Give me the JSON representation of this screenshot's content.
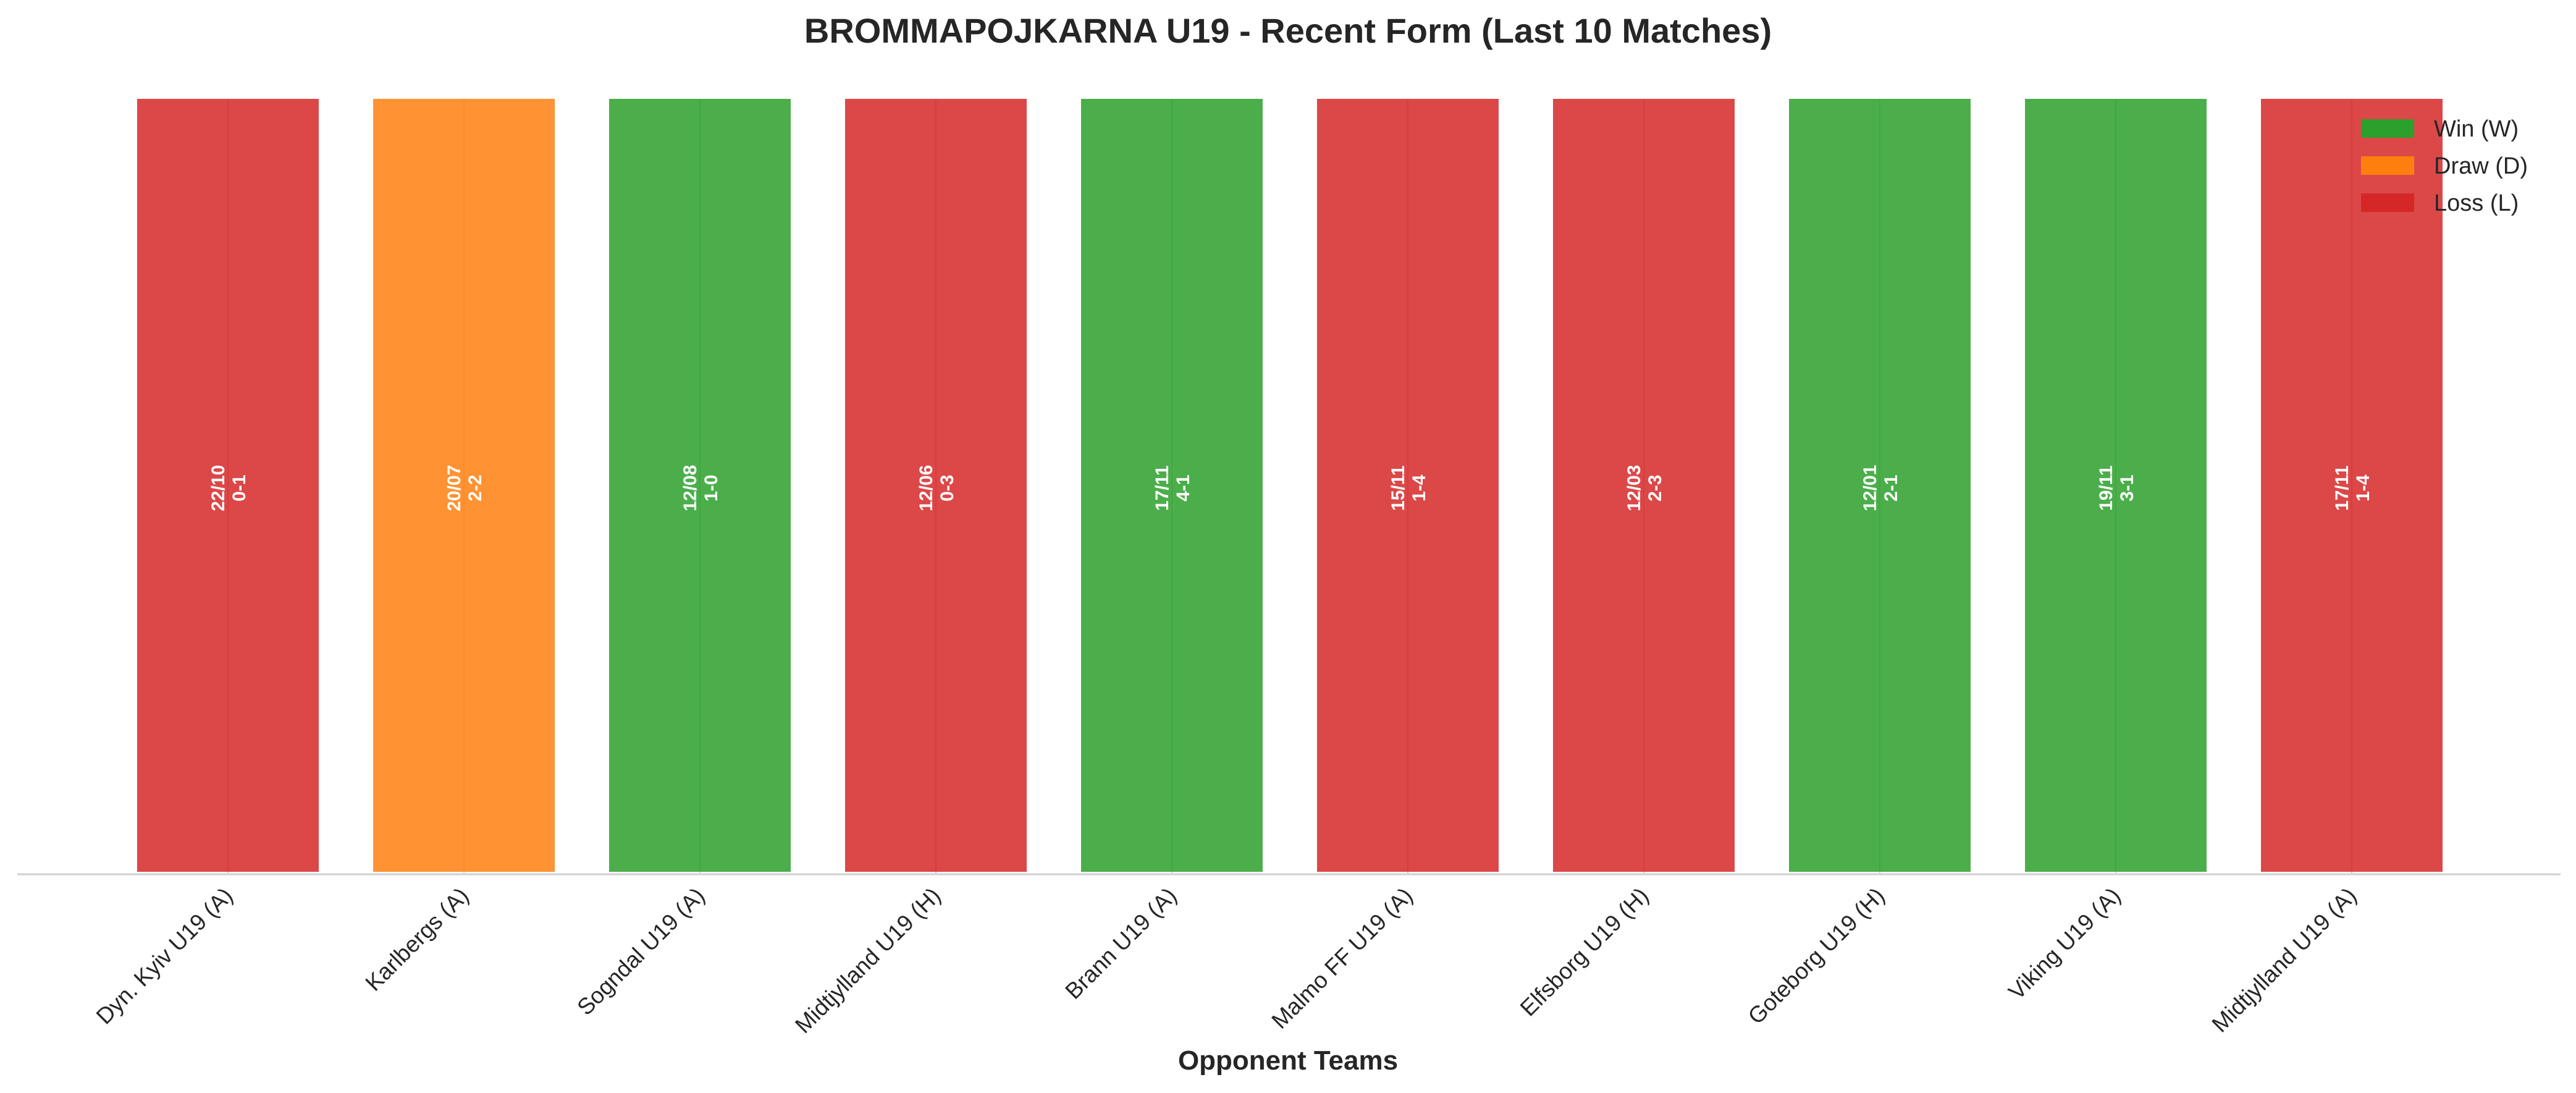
{
  "chart_data": {
    "type": "bar",
    "title": "BROMMAPOJKARNA U19 - Recent Form (Last 10 Matches)",
    "xlabel": "Opponent Teams",
    "ylabel": "",
    "categories": [
      "Dyn. Kyiv U19 (A)",
      "Karlbergs (A)",
      "Sogndal U19 (A)",
      "Midtjylland U19 (H)",
      "Brann U19 (A)",
      "Malmo FF U19 (A)",
      "Elfsborg U19 (H)",
      "Goteborg U19 (H)",
      "Viking U19 (A)",
      "Midtjylland U19 (A)"
    ],
    "results": [
      "L",
      "D",
      "W",
      "L",
      "W",
      "L",
      "L",
      "W",
      "W",
      "L"
    ],
    "dates": [
      "22/10",
      "20/07",
      "12/08",
      "12/06",
      "17/11",
      "15/11",
      "12/03",
      "12/01",
      "19/11",
      "17/11"
    ],
    "scores": [
      "0-1",
      "2-2",
      "1-0",
      "0-3",
      "4-1",
      "1-4",
      "2-3",
      "2-1",
      "3-1",
      "1-4"
    ],
    "values": [
      1,
      1,
      1,
      1,
      1,
      1,
      1,
      1,
      1,
      1
    ],
    "ylim": [
      0,
      1
    ],
    "grid": false,
    "legend_position": "top-right",
    "legend": [
      {
        "key": "W",
        "label": "Win (W)"
      },
      {
        "key": "D",
        "label": "Draw (D)"
      },
      {
        "key": "L",
        "label": "Loss (L)"
      }
    ],
    "colors": {
      "W": "#2ca02c",
      "D": "#ff7f0e",
      "L": "#d62728"
    }
  }
}
